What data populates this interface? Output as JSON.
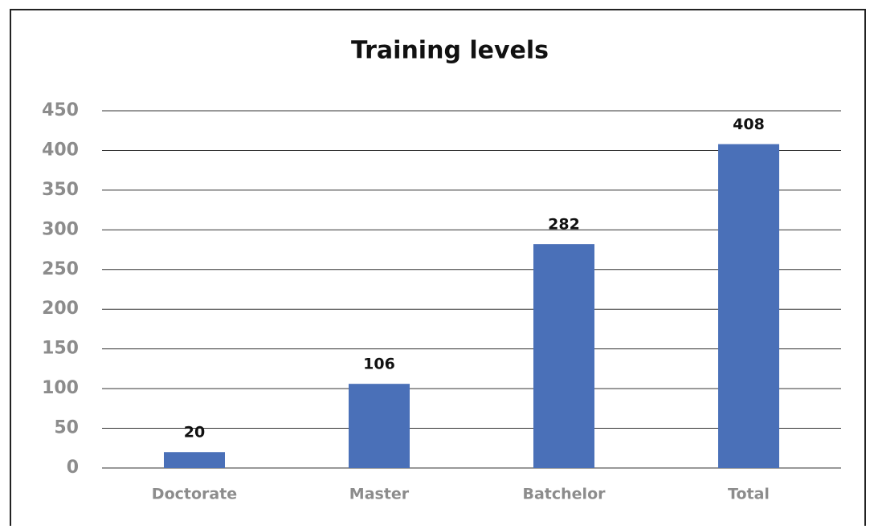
{
  "chart_data": {
    "type": "bar",
    "title": "Training levels",
    "categories": [
      "Doctorate",
      "Master",
      "Batchelor",
      "Total"
    ],
    "values": [
      20,
      106,
      282,
      408
    ],
    "color": "#4a70b8",
    "ylim": [
      0,
      450
    ],
    "yticks": [
      0,
      50,
      100,
      150,
      200,
      250,
      300,
      350,
      400,
      450
    ],
    "grid": true
  }
}
